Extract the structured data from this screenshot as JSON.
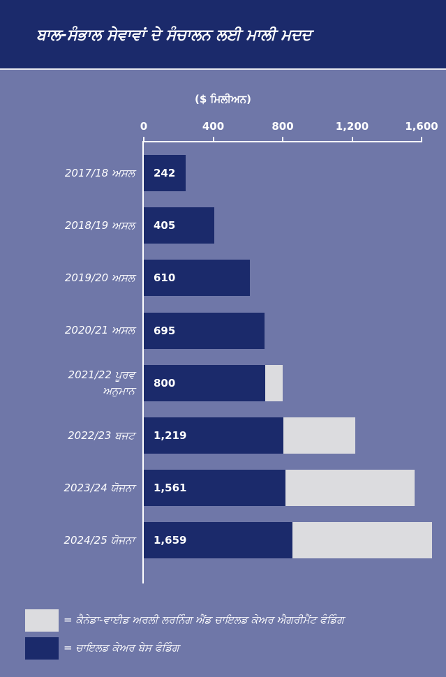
{
  "title": "ਬਾਲ-ਸੰਭਾਲ ਸੇਵਾਵਾਂ ਦੇ ਸੰਚਾਲਨ ਲਈ ਮਾਲੀ ਮਦਦ",
  "colors": {
    "header_bg": "#1b2a6b",
    "background": "#6f77a8",
    "base_funding": "#1b2a6b",
    "cwelcc_funding": "#dcdcdf",
    "text": "#ffffff"
  },
  "chart_data": {
    "type": "bar",
    "orientation": "horizontal",
    "stacked": true,
    "x_unit_label": "($ ਮਿਲੀਅਨ)",
    "xlim": [
      0,
      1600
    ],
    "x_ticks": [
      "0",
      "400",
      "800",
      "1,200",
      "1,600"
    ],
    "x_tick_values": [
      0,
      400,
      800,
      1200,
      1600
    ],
    "categories": [
      [
        "2017/18 ਅਸਲ"
      ],
      [
        "2018/19 ਅਸਲ"
      ],
      [
        "2019/20 ਅਸਲ"
      ],
      [
        "2020/21 ਅਸਲ"
      ],
      [
        "2021/22 ਪੂਰਵ",
        "ਅਨੁਮਾਨ"
      ],
      [
        "2022/23 ਬਜਟ"
      ],
      [
        "2023/24 ਯੋਜਨਾ"
      ],
      [
        "2024/25 ਯੋਜਨਾ"
      ]
    ],
    "totals": [
      242,
      405,
      610,
      695,
      800,
      1219,
      1561,
      1659
    ],
    "total_labels": [
      "242",
      "405",
      "610",
      "695",
      "800",
      "1,219",
      "1,561",
      "1,659"
    ],
    "series": [
      {
        "name": "= ਚਾਇਲਡ ਕੇਅਰ ਬੇਸ ਫੰਡਿੰਗ",
        "values": [
          242,
          405,
          610,
          695,
          700,
          805,
          815,
          855
        ]
      },
      {
        "name": "= ਕੈਨੇਡਾ-ਵਾਈਡ ਅਰਲੀ ਲਰਨਿੰਗ ਐਂਡ ਚਾਇਲਡ ਕੇਅਰ ਐਗਰੀਮੈਂਟ ਫੰਡਿੰਗ",
        "values": [
          0,
          0,
          0,
          0,
          100,
          414,
          746,
          804
        ]
      }
    ],
    "legend_position": "bottom-left",
    "grid": false
  }
}
